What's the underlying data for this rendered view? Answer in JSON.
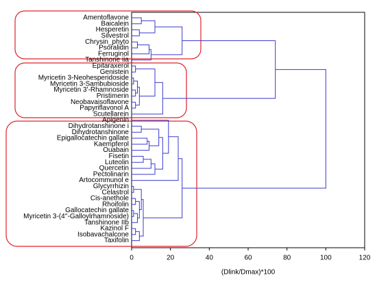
{
  "chart_data": {
    "type": "dendrogram",
    "categories": [
      "Amentoflavone",
      "Baicalein",
      "Hesperetin",
      "Silvestrol",
      "Chrysin_phyto",
      "Psoralidin",
      "Ferruginol",
      "Tanshinone iia",
      "Epitaraxerol",
      "Genistein",
      "Myricetin 3-Neohesperidoside",
      "Myricetin 3-Sambubioside",
      "Myricetin 3'-Rhamnoside",
      "Pristimerin",
      "Neobavaisoflavone",
      "Papyriflavonol A",
      "Scutellarein",
      "Apigenin",
      "Dihydrotanshinone i",
      "Dihydrotanshinone",
      "Epigallocatechin gallate",
      "Kaempferol",
      "Ouabain",
      "Fisetin",
      "Luteolin",
      "Quercetin",
      "Pectolinarin",
      "Artocommunol e",
      "Glycyrrhizin",
      "Celastrol",
      "Cis-anethole",
      "Rhoifolin",
      "Gallocatechin gallate",
      "Myricetin 3-(4''-Galloylrhamnoside)",
      "Tanshinone IIb",
      "Kazinol F",
      "Isobavachalcone",
      "Taxifolin"
    ],
    "merges": [
      [
        0,
        1,
        5
      ],
      [
        2,
        3,
        4
      ],
      [
        38,
        39,
        12
      ],
      [
        4,
        5,
        3
      ],
      [
        41,
        6,
        9
      ],
      [
        42,
        7,
        10
      ],
      [
        40,
        43,
        26
      ],
      [
        8,
        9,
        2
      ],
      [
        10,
        11,
        1
      ],
      [
        12,
        13,
        2
      ],
      [
        46,
        47,
        3
      ],
      [
        14,
        15,
        2
      ],
      [
        48,
        49,
        4
      ],
      [
        45,
        50,
        12
      ],
      [
        51,
        16,
        16
      ],
      [
        44,
        52,
        74
      ],
      [
        18,
        19,
        5
      ],
      [
        20,
        21,
        8
      ],
      [
        55,
        22,
        9
      ],
      [
        54,
        56,
        14
      ],
      [
        23,
        24,
        6
      ],
      [
        58,
        25,
        10
      ],
      [
        59,
        26,
        12
      ],
      [
        57,
        60,
        16
      ],
      [
        17,
        61,
        19
      ],
      [
        62,
        27,
        24
      ],
      [
        28,
        29,
        1
      ],
      [
        30,
        31,
        2
      ],
      [
        32,
        33,
        1
      ],
      [
        66,
        34,
        3
      ],
      [
        35,
        36,
        2
      ],
      [
        68,
        37,
        4
      ],
      [
        65,
        67,
        4
      ],
      [
        64,
        70,
        5
      ],
      [
        71,
        69,
        6
      ],
      [
        63,
        72,
        26
      ],
      [
        53,
        73,
        100
      ]
    ],
    "color": "#3a3acf",
    "xlabel": "(Dlink/Dmax)*100",
    "xlim": [
      0,
      120
    ],
    "xticks": [
      0,
      20,
      40,
      60,
      80,
      100,
      120
    ]
  }
}
